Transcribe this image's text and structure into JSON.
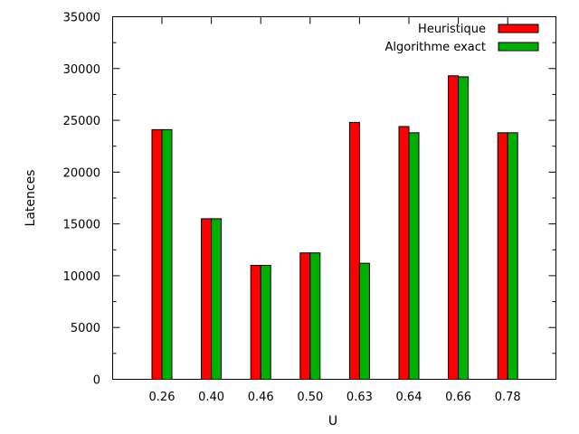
{
  "chart_data": {
    "type": "bar",
    "xlabel": "U",
    "ylabel": "Latences",
    "categories": [
      "0.26",
      "0.40",
      "0.46",
      "0.50",
      "0.63",
      "0.64",
      "0.66",
      "0.78"
    ],
    "ylim": [
      0,
      35000
    ],
    "yticks": [
      0,
      5000,
      10000,
      15000,
      20000,
      25000,
      30000,
      35000
    ],
    "legend_position": "top-right",
    "grid": false,
    "series": [
      {
        "name": "Heuristique",
        "color": "#ff0000",
        "values": [
          24100,
          15500,
          11000,
          12200,
          24800,
          24400,
          29300,
          23800
        ]
      },
      {
        "name": "Algorithme exact",
        "color": "#00b000",
        "values": [
          24100,
          15500,
          11000,
          12200,
          11200,
          23800,
          29200,
          23800
        ]
      }
    ]
  }
}
